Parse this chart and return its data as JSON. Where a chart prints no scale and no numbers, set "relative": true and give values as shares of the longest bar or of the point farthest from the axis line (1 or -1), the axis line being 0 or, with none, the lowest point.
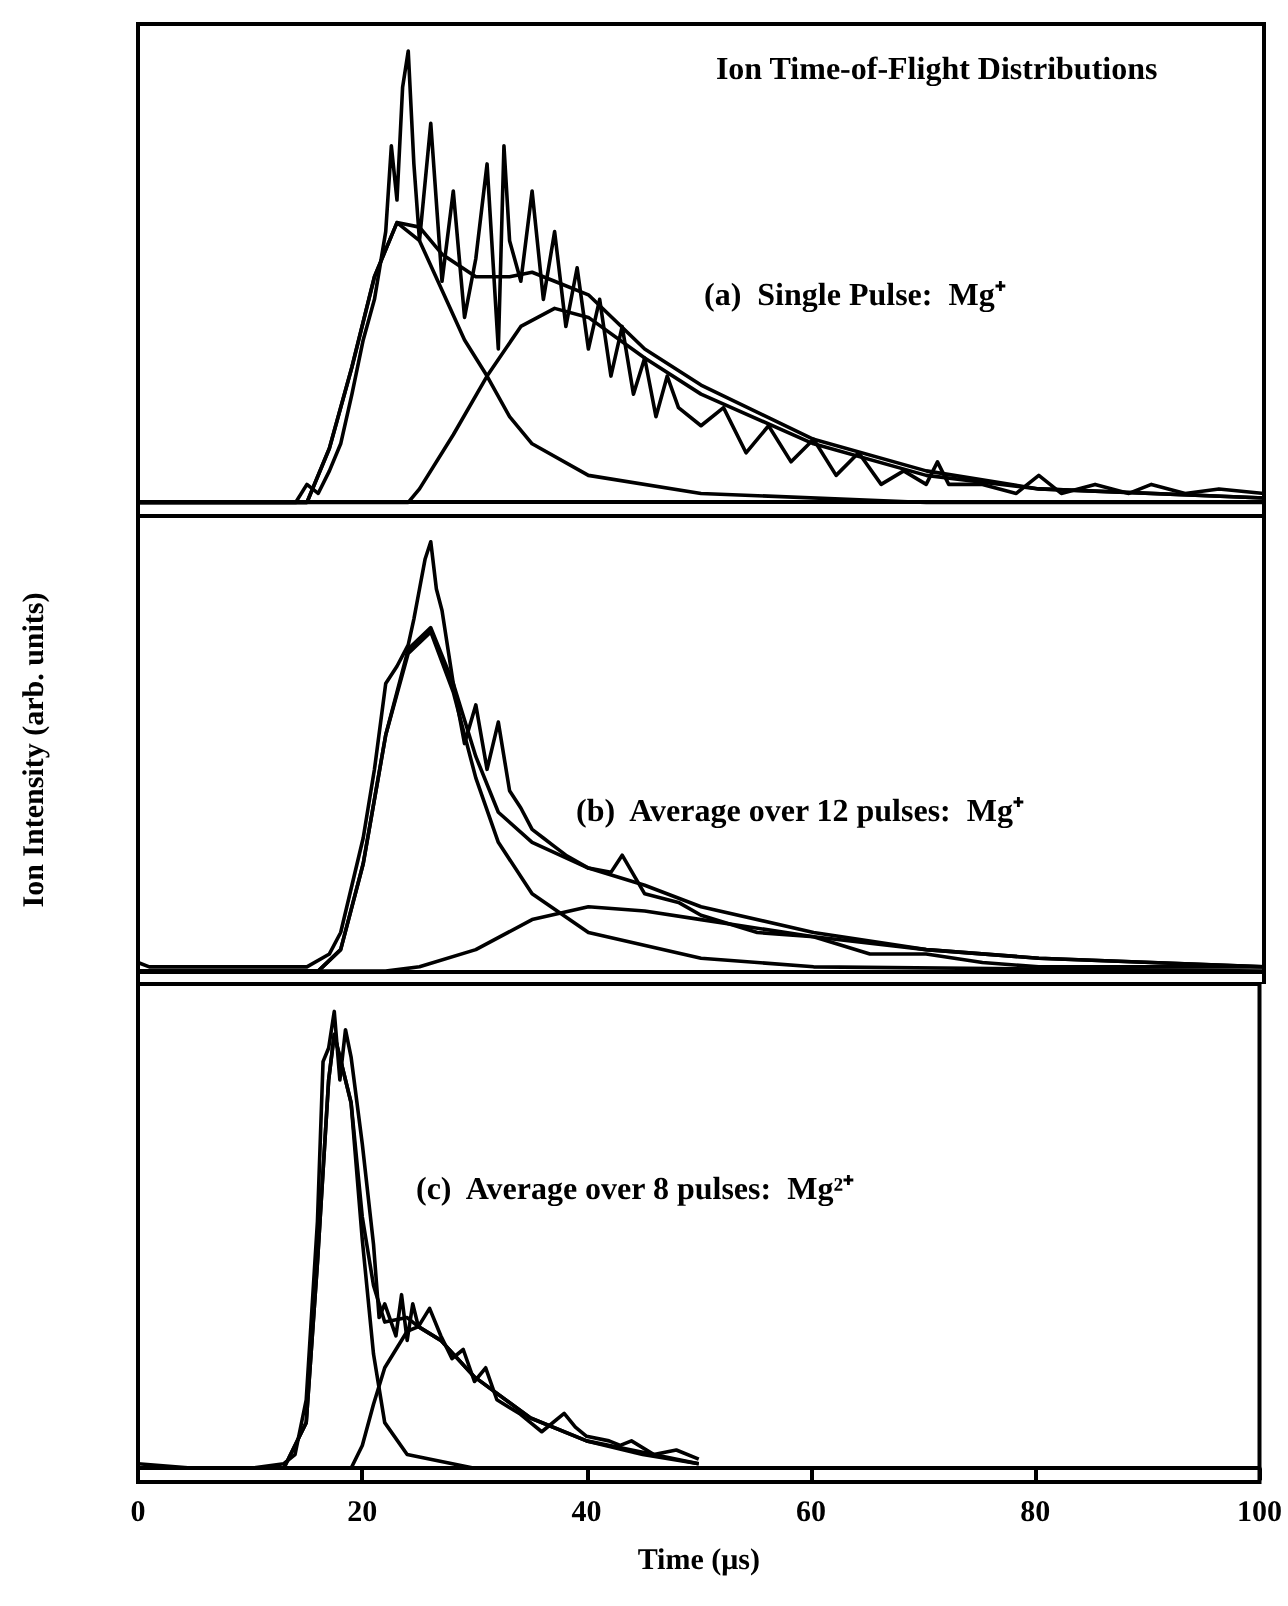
{
  "chart_data": [
    {
      "type": "line",
      "title": "Ion Time-of-Flight Distributions",
      "annotations": [
        "(a)  Single Pulse:  Mg⁺"
      ],
      "relative": true,
      "xlim": [
        0,
        100
      ],
      "tick_labels": false,
      "grid": false,
      "marker": "none",
      "line_style": "solid",
      "series": [
        {
          "color": "#000000",
          "x": [
            0,
            10,
            14,
            15,
            16,
            17,
            18,
            19,
            20,
            21,
            22,
            22.5,
            23,
            23.5,
            24,
            24.5,
            25,
            26,
            27,
            28,
            29,
            30,
            31,
            32,
            32.5,
            33,
            34,
            35,
            36,
            37,
            38,
            39,
            40,
            41,
            42,
            43,
            44,
            45,
            46,
            47,
            48,
            50,
            52,
            54,
            56,
            58,
            60,
            62,
            64,
            66,
            68,
            70,
            71,
            72,
            75,
            78,
            80,
            82,
            85,
            88,
            90,
            93,
            96,
            100
          ],
          "values": [
            0,
            0,
            0,
            0.04,
            0.02,
            0.07,
            0.13,
            0.24,
            0.36,
            0.45,
            0.6,
            0.79,
            0.67,
            0.92,
            1,
            0.75,
            0.58,
            0.84,
            0.49,
            0.69,
            0.41,
            0.54,
            0.75,
            0.34,
            0.79,
            0.58,
            0.49,
            0.69,
            0.45,
            0.6,
            0.39,
            0.52,
            0.34,
            0.45,
            0.28,
            0.39,
            0.24,
            0.32,
            0.19,
            0.28,
            0.21,
            0.17,
            0.21,
            0.11,
            0.17,
            0.09,
            0.14,
            0.06,
            0.11,
            0.04,
            0.07,
            0.04,
            0.09,
            0.04,
            0.04,
            0.02,
            0.06,
            0.02,
            0.04,
            0.02,
            0.04,
            0.02,
            0.03,
            0.02
          ]
        },
        {
          "color": "#000000",
          "x": [
            0,
            15,
            17,
            19,
            21,
            23,
            25,
            27,
            29,
            31,
            33,
            35,
            40,
            50,
            70,
            100
          ],
          "values": [
            0,
            0,
            0.12,
            0.3,
            0.5,
            0.62,
            0.58,
            0.47,
            0.36,
            0.28,
            0.19,
            0.13,
            0.06,
            0.02,
            0,
            0
          ]
        },
        {
          "color": "#000000",
          "x": [
            0,
            24,
            25,
            28,
            31,
            34,
            37,
            40,
            45,
            50,
            60,
            70,
            80,
            100
          ],
          "values": [
            0,
            0,
            0.03,
            0.15,
            0.28,
            0.39,
            0.43,
            0.41,
            0.32,
            0.24,
            0.13,
            0.06,
            0.03,
            0.01
          ]
        },
        {
          "color": "#000000",
          "x": [
            0,
            15,
            17,
            19,
            21,
            23,
            25,
            27,
            30,
            33,
            35,
            37,
            40,
            45,
            50,
            60,
            70,
            80,
            100
          ],
          "values": [
            0,
            0,
            0.12,
            0.3,
            0.5,
            0.62,
            0.61,
            0.55,
            0.5,
            0.5,
            0.51,
            0.49,
            0.46,
            0.34,
            0.26,
            0.14,
            0.07,
            0.03,
            0.01
          ]
        }
      ]
    },
    {
      "type": "line",
      "ylabel": "Ion Intensity (arb. units)",
      "annotations": [
        "(b)  Average over 12 pulses:  Mg⁺"
      ],
      "relative": true,
      "xlim": [
        0,
        100
      ],
      "tick_labels": false,
      "grid": false,
      "marker": "none",
      "line_style": "solid",
      "series": [
        {
          "color": "#000000",
          "x": [
            0,
            1,
            15,
            17,
            18,
            19,
            20,
            21,
            22,
            23,
            24,
            24.5,
            25,
            25.5,
            26,
            26.5,
            27,
            28,
            29,
            30,
            31,
            32,
            33,
            34,
            35,
            36,
            37,
            38,
            40,
            42,
            43,
            45,
            48,
            50,
            55,
            60,
            65,
            70,
            75,
            80,
            90,
            100
          ],
          "values": [
            0.02,
            0.01,
            0.01,
            0.04,
            0.09,
            0.2,
            0.31,
            0.47,
            0.67,
            0.71,
            0.76,
            0.82,
            0.89,
            0.96,
            1,
            0.89,
            0.84,
            0.67,
            0.53,
            0.62,
            0.47,
            0.58,
            0.42,
            0.38,
            0.33,
            0.31,
            0.29,
            0.27,
            0.24,
            0.23,
            0.27,
            0.18,
            0.16,
            0.13,
            0.09,
            0.08,
            0.04,
            0.04,
            0.02,
            0.01,
            0.01,
            0.01
          ]
        },
        {
          "color": "#000000",
          "x": [
            0,
            16,
            18,
            20,
            22,
            24,
            26,
            28,
            30,
            32,
            35,
            40,
            50,
            60,
            100
          ],
          "values": [
            0,
            0,
            0.05,
            0.25,
            0.55,
            0.74,
            0.79,
            0.65,
            0.45,
            0.3,
            0.18,
            0.09,
            0.03,
            0.01,
            0
          ]
        },
        {
          "color": "#000000",
          "x": [
            0,
            22,
            25,
            30,
            35,
            40,
            45,
            50,
            60,
            70,
            80,
            100
          ],
          "values": [
            0,
            0,
            0.01,
            0.05,
            0.12,
            0.15,
            0.14,
            0.12,
            0.08,
            0.05,
            0.03,
            0.01
          ]
        },
        {
          "color": "#000000",
          "x": [
            0,
            16,
            18,
            20,
            22,
            24,
            26,
            28,
            30,
            32,
            35,
            40,
            45,
            50,
            60,
            70,
            80,
            100
          ],
          "values": [
            0,
            0,
            0.05,
            0.25,
            0.55,
            0.75,
            0.8,
            0.67,
            0.5,
            0.37,
            0.3,
            0.24,
            0.2,
            0.15,
            0.09,
            0.05,
            0.03,
            0.01
          ]
        }
      ]
    },
    {
      "type": "line",
      "xlabel": "Time (μs)",
      "annotations": [
        "(c)  Average over 8 pulses:  Mg²⁺"
      ],
      "relative": true,
      "xlim": [
        0,
        100
      ],
      "xticks": [
        0,
        20,
        40,
        60,
        80,
        100
      ],
      "tick_labels": "x",
      "grid": false,
      "marker": "none",
      "line_style": "solid",
      "series": [
        {
          "color": "#000000",
          "x": [
            0,
            5,
            10,
            13,
            14,
            15,
            16,
            16.5,
            17,
            17.5,
            18,
            18.5,
            19,
            20,
            21,
            21.5,
            22,
            23,
            23.5,
            24,
            24.5,
            25,
            26,
            27,
            28,
            29,
            30,
            31,
            32,
            34,
            35,
            36,
            38,
            39,
            40,
            42,
            43,
            44,
            46,
            48,
            50
          ],
          "values": [
            0.01,
            0,
            0,
            0.01,
            0.03,
            0.15,
            0.54,
            0.89,
            0.92,
            1,
            0.85,
            0.96,
            0.9,
            0.71,
            0.49,
            0.33,
            0.36,
            0.29,
            0.38,
            0.28,
            0.36,
            0.31,
            0.35,
            0.29,
            0.24,
            0.26,
            0.19,
            0.22,
            0.15,
            0.12,
            0.1,
            0.08,
            0.12,
            0.09,
            0.07,
            0.06,
            0.05,
            0.06,
            0.03,
            0.04,
            0.02
          ]
        },
        {
          "color": "#000000",
          "x": [
            0,
            13,
            15,
            16,
            17,
            17.5,
            19,
            20,
            21,
            22,
            24,
            30,
            50
          ],
          "values": [
            0,
            0,
            0.1,
            0.45,
            0.85,
            0.95,
            0.8,
            0.5,
            0.25,
            0.1,
            0.03,
            0,
            0
          ]
        },
        {
          "color": "#000000",
          "x": [
            0,
            19,
            20,
            21,
            22,
            24,
            25,
            27,
            30,
            35,
            40,
            45,
            50
          ],
          "values": [
            0,
            0,
            0.05,
            0.14,
            0.22,
            0.3,
            0.31,
            0.28,
            0.2,
            0.11,
            0.06,
            0.03,
            0.01
          ]
        },
        {
          "color": "#000000",
          "x": [
            0,
            13,
            15,
            16,
            17,
            17.5,
            19,
            20,
            21,
            22,
            24,
            25,
            27,
            30,
            35,
            40,
            50
          ],
          "values": [
            0,
            0,
            0.1,
            0.45,
            0.85,
            0.95,
            0.8,
            0.55,
            0.4,
            0.32,
            0.33,
            0.31,
            0.28,
            0.2,
            0.11,
            0.06,
            0.01
          ]
        }
      ]
    }
  ]
}
